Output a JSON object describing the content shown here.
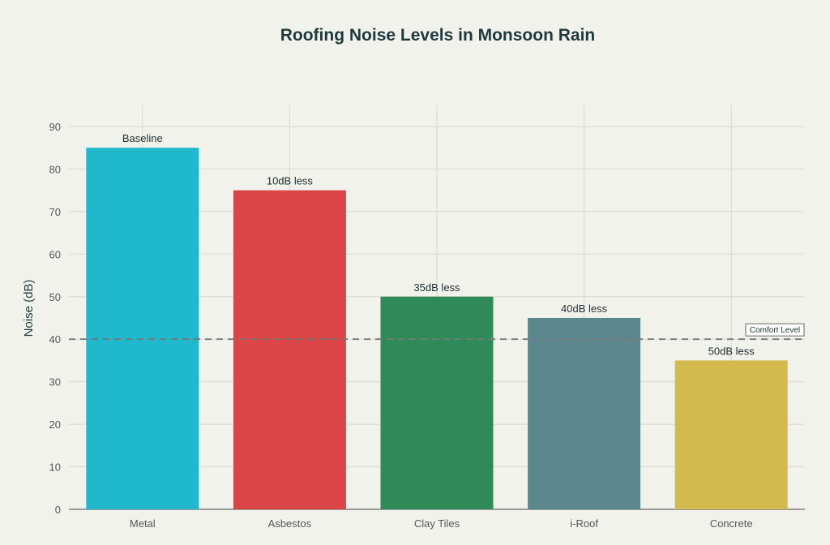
{
  "chart_data": {
    "type": "bar",
    "title": "Roofing Noise Levels in Monsoon Rain",
    "xlabel": "",
    "ylabel": "Noise (dB)",
    "categories": [
      "Metal",
      "Asbestos",
      "Clay Tiles",
      "i-Roof",
      "Concrete"
    ],
    "values": [
      85,
      75,
      50,
      45,
      35
    ],
    "data_labels": [
      "Baseline",
      "10dB less",
      "35dB less",
      "40dB less",
      "50dB less"
    ],
    "colors": [
      "#1fb8cd",
      "#db4545",
      "#2e8b57",
      "#5d878f",
      "#d2ba4c"
    ],
    "ylim": [
      0,
      95
    ],
    "yticks": [
      0,
      10,
      20,
      30,
      40,
      50,
      60,
      70,
      80,
      90
    ],
    "grid": true,
    "reference_line": {
      "value": 40,
      "label": "Comfort Level",
      "style": "dashed",
      "color": "#777777"
    }
  }
}
